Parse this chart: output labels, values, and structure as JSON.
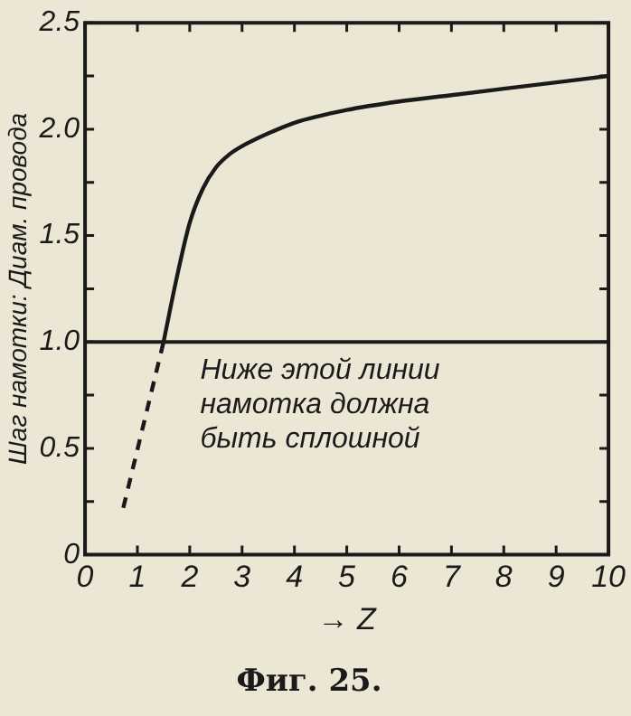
{
  "chart_data": {
    "type": "line",
    "title": "Фиг. 25.",
    "xlabel": "→ Z",
    "ylabel": "Шаг намотки: Диам. провода",
    "series": [
      {
        "color": "#1a1a1a",
        "line_style": "solid",
        "x": [
          1.5,
          1.75,
          2,
          2.25,
          2.5,
          2.75,
          3,
          3.5,
          4,
          5,
          6,
          7,
          8,
          9,
          10
        ],
        "values": [
          1.0,
          1.3,
          1.56,
          1.72,
          1.82,
          1.88,
          1.92,
          1.98,
          2.03,
          2.09,
          2.13,
          2.16,
          2.19,
          2.22,
          2.25
        ]
      },
      {
        "color": "#1a1a1a",
        "line_style": "dashed",
        "x": [
          0.73,
          1.5
        ],
        "values": [
          0.22,
          1.0
        ]
      }
    ],
    "xlim": [
      0,
      10
    ],
    "xticks": [
      0,
      1,
      2,
      3,
      4,
      5,
      6,
      7,
      8,
      9,
      10
    ],
    "ylim": [
      0,
      2.5
    ],
    "yticks": [
      0,
      {
        "value": 0.25,
        "label": null
      },
      {
        "value": 0.5,
        "label": "0.5"
      },
      {
        "value": 0.75,
        "label": null
      },
      {
        "value": 1,
        "label": "1.0"
      },
      {
        "value": 1.25,
        "label": null
      },
      {
        "value": 1.5,
        "label": "1.5"
      },
      {
        "value": 1.75,
        "label": null
      },
      {
        "value": 2,
        "label": "2.0"
      },
      {
        "value": 2.25,
        "label": null
      },
      {
        "value": 2.5,
        "label": "2.5"
      }
    ],
    "ref_lines": [
      {
        "axis": "y",
        "value": 1,
        "color": "#1a1a1a"
      }
    ],
    "annotations": [
      "Ниже этой линии\nнамотка должна\nбыть сплошной"
    ],
    "grid": false,
    "legend": false,
    "marker": "none"
  }
}
